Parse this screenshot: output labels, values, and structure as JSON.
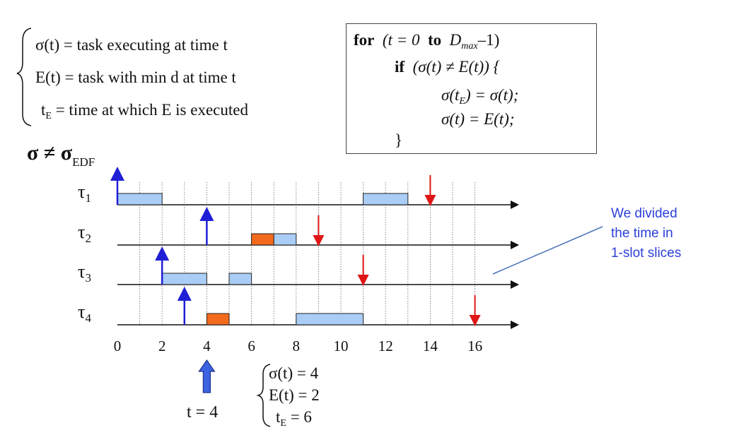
{
  "definitions": {
    "sigma": "σ(t) = task executing at time t",
    "e": "E(t) = task with min d at time t",
    "te_lhs": "t",
    "te_sub": "E",
    "te_rhs": " = time at which E is executed"
  },
  "code": {
    "line1_for": "for",
    "line1_a": "(t = 0",
    "line1_to": "to",
    "line1_d": "D",
    "line1_dsub": "max",
    "line1_b": "–1)",
    "line2_if": "if",
    "line2_cond": "(σ(t) ≠ E(t)) {",
    "line3_a": "σ(t",
    "line3_sub": "E",
    "line3_b": ") = σ(t);",
    "line4": "σ(t) = E(t);",
    "line5": "}"
  },
  "title": {
    "main": "σ ≠ σ",
    "sub": "EDF"
  },
  "note": "We divided\nthe time in\n1-slot slices",
  "axis_ticks": [
    "0",
    "2",
    "4",
    "6",
    "8",
    "10",
    "12",
    "14",
    "16"
  ],
  "tasks": [
    {
      "label": "τ",
      "sub": "1",
      "arrival": 0,
      "deadline": 14,
      "segments": [
        {
          "start": 0,
          "end": 2,
          "color": "#a9cdf5"
        },
        {
          "start": 11,
          "end": 13,
          "color": "#a9cdf5"
        }
      ]
    },
    {
      "label": "τ",
      "sub": "2",
      "arrival": 4,
      "deadline": 9,
      "segments": [
        {
          "start": 6,
          "end": 7,
          "color": "#f46a1c"
        },
        {
          "start": 7,
          "end": 8,
          "color": "#a9cdf5"
        }
      ]
    },
    {
      "label": "τ",
      "sub": "3",
      "arrival": 2,
      "deadline": 11,
      "segments": [
        {
          "start": 2,
          "end": 4,
          "color": "#a9cdf5"
        },
        {
          "start": 5,
          "end": 6,
          "color": "#a9cdf5"
        }
      ]
    },
    {
      "label": "τ",
      "sub": "4",
      "arrival": 3,
      "deadline": 16,
      "segments": [
        {
          "start": 4,
          "end": 5,
          "color": "#f46a1c"
        },
        {
          "start": 8,
          "end": 11,
          "color": "#a9cdf5"
        }
      ]
    }
  ],
  "marker": {
    "label": "t = 4",
    "time": 4
  },
  "state": {
    "sigma": "σ(t) = 4",
    "e": "E(t) = 2",
    "te_lhs": "t",
    "te_sub": "E",
    "te_rhs": " = 6"
  },
  "colors": {
    "arrival": "#1f1fd6",
    "deadline": "#e01515",
    "note": "#2b3fd8",
    "marker": "#3d63e0"
  }
}
